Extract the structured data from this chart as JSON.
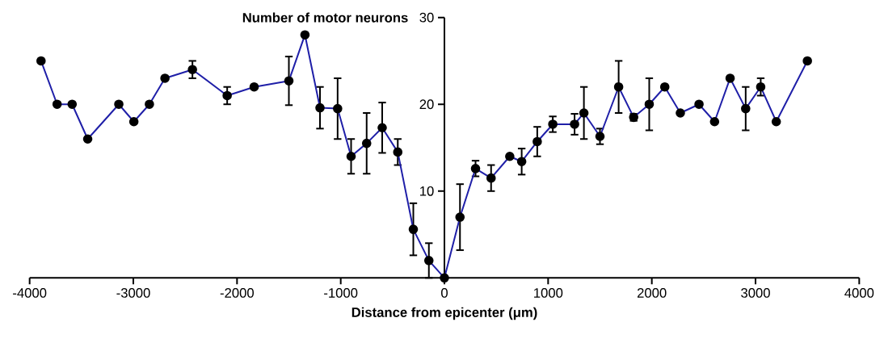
{
  "chart_data": {
    "type": "line",
    "xlabel": "Distance from epicenter (μm)",
    "ylabel": "Number of motor neurons",
    "xlim": [
      -4000,
      4000
    ],
    "ylim": [
      0,
      30
    ],
    "xticks": [
      -4000,
      -3000,
      -2000,
      -1000,
      0,
      1000,
      2000,
      3000,
      4000
    ],
    "yticks": [
      10,
      20,
      30
    ],
    "marker": "circle",
    "line_style": "solid",
    "series": [
      {
        "color": "#1f1fa8",
        "x": [
          -3890,
          -3735,
          -3590,
          -3440,
          -3140,
          -2995,
          -2845,
          -2695,
          -2430,
          -2095,
          -1835,
          -1500,
          -1345,
          -1200,
          -1030,
          -900,
          -750,
          -600,
          -450,
          -300,
          -150,
          0,
          150,
          300,
          450,
          630,
          745,
          895,
          1045,
          1255,
          1345,
          1500,
          1680,
          1825,
          1975,
          2125,
          2275,
          2455,
          2605,
          2755,
          2905,
          3050,
          3200,
          3500
        ],
        "values": [
          25,
          20,
          20,
          16,
          20,
          18,
          20,
          23,
          24,
          21,
          22,
          22.7,
          28,
          19.6,
          19.5,
          14,
          15.5,
          17.3,
          14.5,
          5.6,
          2,
          0,
          7,
          12.6,
          11.5,
          14,
          13.4,
          15.7,
          17.7,
          17.7,
          19,
          16.3,
          22,
          18.5,
          20,
          22,
          19,
          20,
          18,
          23,
          19.5,
          22,
          18,
          25
        ],
        "errors": [
          null,
          null,
          null,
          null,
          null,
          null,
          null,
          null,
          1,
          1,
          null,
          2.8,
          null,
          2.4,
          3.5,
          2,
          3.5,
          2.9,
          1.5,
          3,
          2,
          null,
          3.8,
          0.9,
          1.5,
          null,
          1.5,
          1.7,
          0.9,
          1.2,
          3,
          0.9,
          3,
          0.4,
          3,
          null,
          null,
          null,
          null,
          null,
          2.5,
          1,
          null,
          null
        ]
      }
    ]
  }
}
